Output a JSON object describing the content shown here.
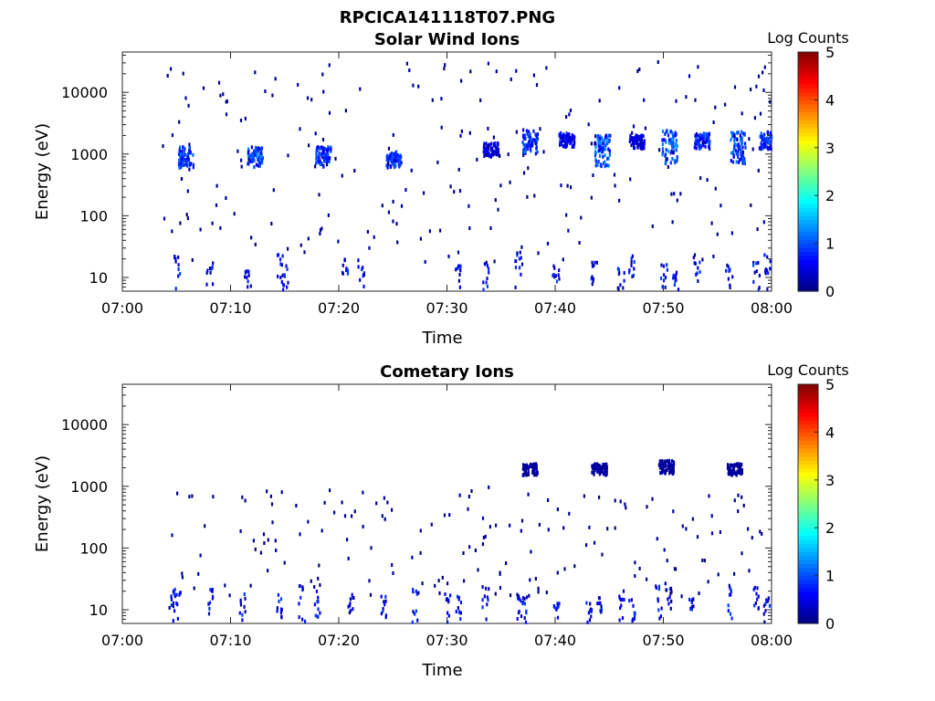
{
  "figure_title": "RPCICA141118T07.PNG",
  "chart_data": [
    {
      "type": "heatmap",
      "title": "Solar Wind Ions",
      "xlabel": "Time",
      "ylabel": "Energy (eV)",
      "xlim": [
        "07:00",
        "08:00"
      ],
      "ylim": [
        6,
        45000
      ],
      "yscale": "log",
      "xticks": [
        "07:00",
        "07:10",
        "07:20",
        "07:30",
        "07:40",
        "07:50",
        "08:00"
      ],
      "yticks": [
        "10",
        "100",
        "1000",
        "10000"
      ],
      "colorbar": {
        "label": "Log Counts",
        "range": [
          0,
          5
        ],
        "ticks": [
          "0",
          "1",
          "2",
          "3",
          "4",
          "5"
        ],
        "colormap": "jet"
      },
      "clusters": [
        {
          "t": 5.8,
          "emin": 600,
          "emax": 1300,
          "count": 1.1
        },
        {
          "t": 12.2,
          "emin": 600,
          "emax": 1300,
          "count": 1.2
        },
        {
          "t": 18.5,
          "emin": 600,
          "emax": 1300,
          "count": 1.1
        },
        {
          "t": 25.0,
          "emin": 600,
          "emax": 1100,
          "count": 1.0
        },
        {
          "t": 34.0,
          "emin": 900,
          "emax": 1500,
          "count": 0.6
        },
        {
          "t": 37.6,
          "emin": 1000,
          "emax": 2500,
          "count": 1.1
        },
        {
          "t": 41.0,
          "emin": 1300,
          "emax": 2200,
          "count": 0.8
        },
        {
          "t": 44.3,
          "emin": 600,
          "emax": 2000,
          "count": 1.3
        },
        {
          "t": 47.5,
          "emin": 1200,
          "emax": 2000,
          "count": 0.6
        },
        {
          "t": 50.5,
          "emin": 700,
          "emax": 2500,
          "count": 1.3
        },
        {
          "t": 53.5,
          "emin": 1200,
          "emax": 2200,
          "count": 1.0
        },
        {
          "t": 56.8,
          "emin": 700,
          "emax": 2300,
          "count": 1.2
        },
        {
          "t": 59.5,
          "emin": 1200,
          "emax": 2300,
          "count": 1.0
        }
      ],
      "low_energy_columns": [
        5.0,
        8.0,
        11.5,
        14.5,
        15.0,
        20.5,
        22.0,
        31.0,
        33.5,
        36.5,
        40.0,
        43.5,
        46.0,
        47.0,
        50.0,
        51.0,
        53.0,
        56.0,
        58.5,
        59.5
      ]
    },
    {
      "type": "heatmap",
      "title": "Cometary Ions",
      "xlabel": "Time",
      "ylabel": "Energy (eV)",
      "xlim": [
        "07:00",
        "08:00"
      ],
      "ylim": [
        6,
        45000
      ],
      "yscale": "log",
      "xticks": [
        "07:00",
        "07:10",
        "07:20",
        "07:30",
        "07:40",
        "07:50",
        "08:00"
      ],
      "yticks": [
        "10",
        "100",
        "1000",
        "10000"
      ],
      "colorbar": {
        "label": "Log Counts",
        "range": [
          0,
          5
        ],
        "ticks": [
          "0",
          "1",
          "2",
          "3",
          "4",
          "5"
        ],
        "colormap": "jet"
      },
      "clusters": [
        {
          "t": 37.6,
          "emin": 1500,
          "emax": 2300,
          "count": 0.2
        },
        {
          "t": 44.0,
          "emin": 1500,
          "emax": 2300,
          "count": 0.2
        },
        {
          "t": 50.2,
          "emin": 1600,
          "emax": 2600,
          "count": 0.2
        },
        {
          "t": 56.5,
          "emin": 1500,
          "emax": 2300,
          "count": 0.2
        }
      ],
      "low_energy_columns": [
        4.5,
        5.0,
        8.0,
        11.0,
        14.5,
        16.5,
        18.0,
        21.0,
        24.0,
        27.0,
        30.0,
        31.0,
        33.5,
        36.5,
        37.0,
        40.0,
        43.0,
        44.0,
        46.0,
        47.0,
        49.5,
        50.5,
        52.5,
        56.0,
        58.5,
        59.5
      ]
    }
  ]
}
